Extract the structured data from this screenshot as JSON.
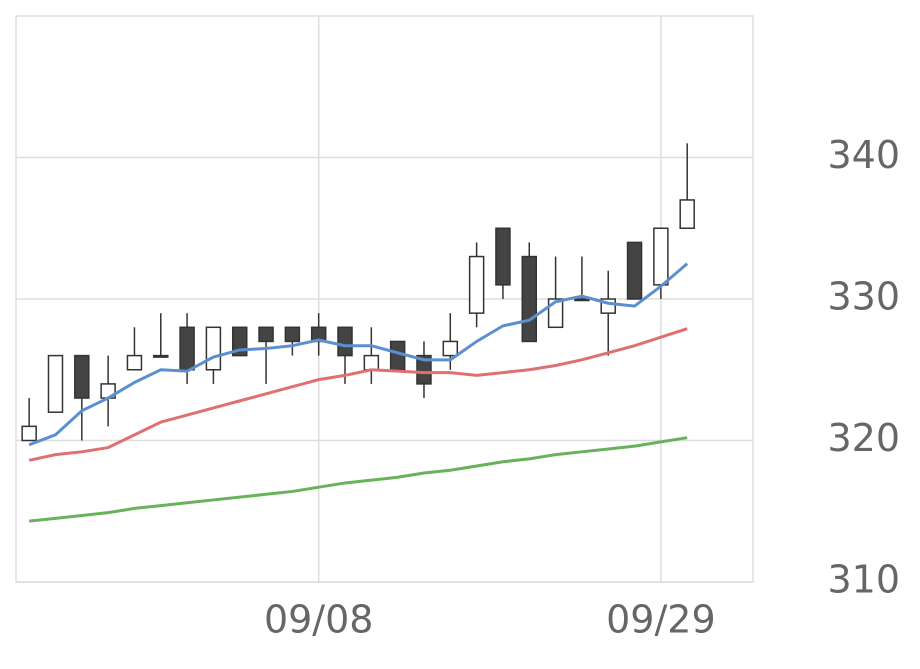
{
  "chart_data": {
    "type": "candlestick",
    "categories": [
      null,
      null,
      null,
      null,
      null,
      null,
      null,
      null,
      null,
      null,
      null,
      "09/08",
      null,
      null,
      null,
      null,
      null,
      null,
      null,
      null,
      null,
      null,
      null,
      null,
      "09/29",
      null
    ],
    "open": [
      320,
      322,
      326,
      323,
      325,
      326,
      328,
      325,
      328,
      328,
      328,
      328,
      328,
      325,
      327,
      326,
      326,
      329,
      335,
      333,
      328,
      330,
      329,
      334,
      331,
      335
    ],
    "high": [
      323,
      326,
      326,
      326,
      328,
      329,
      329,
      328,
      328,
      328,
      328,
      329,
      328,
      328,
      327,
      327,
      329,
      334,
      335,
      334,
      333,
      333,
      332,
      334,
      335,
      341
    ],
    "low": [
      320,
      322,
      320,
      321,
      325,
      326,
      324,
      324,
      326,
      324,
      326,
      326,
      324,
      324,
      325,
      323,
      325,
      328,
      330,
      327,
      328,
      330,
      326,
      330,
      330,
      335
    ],
    "close": [
      321,
      326,
      323,
      324,
      326,
      326,
      325,
      328,
      326,
      327,
      327,
      327,
      326,
      326,
      325,
      324,
      327,
      333,
      331,
      327,
      330,
      330,
      330,
      330,
      335,
      337
    ],
    "up_color": "#ffffff",
    "down_color": "#444444",
    "series": [
      {
        "color": "#5b8fd0",
        "values": [
          319.7,
          320.4,
          322.1,
          323.0,
          324.1,
          325.0,
          324.9,
          325.9,
          326.4,
          326.5,
          326.7,
          327.1,
          326.7,
          326.7,
          326.2,
          325.7,
          325.7,
          327.0,
          328.1,
          328.5,
          329.8,
          330.2,
          329.7,
          329.5,
          330.9,
          332.5
        ]
      },
      {
        "color": "#e07070",
        "values": [
          318.6,
          319.0,
          319.2,
          319.5,
          320.4,
          321.3,
          321.8,
          322.3,
          322.8,
          323.3,
          323.8,
          324.3,
          324.6,
          325.0,
          324.9,
          324.8,
          324.8,
          324.6,
          324.8,
          325.0,
          325.3,
          325.7,
          326.2,
          326.7,
          327.3,
          327.9
        ]
      },
      {
        "color": "#66b35a",
        "values": [
          314.3,
          314.5,
          314.7,
          314.9,
          315.2,
          315.4,
          315.6,
          315.8,
          316.0,
          316.2,
          316.4,
          316.7,
          317.0,
          317.2,
          317.4,
          317.7,
          317.9,
          318.2,
          318.5,
          318.7,
          319.0,
          319.2,
          319.4,
          319.6,
          319.9,
          320.2
        ]
      }
    ],
    "xlim": [
      -0.5,
      27.5
    ],
    "ylim": [
      310,
      350
    ],
    "yticks": [
      310,
      320,
      330,
      340
    ],
    "grid": true
  }
}
